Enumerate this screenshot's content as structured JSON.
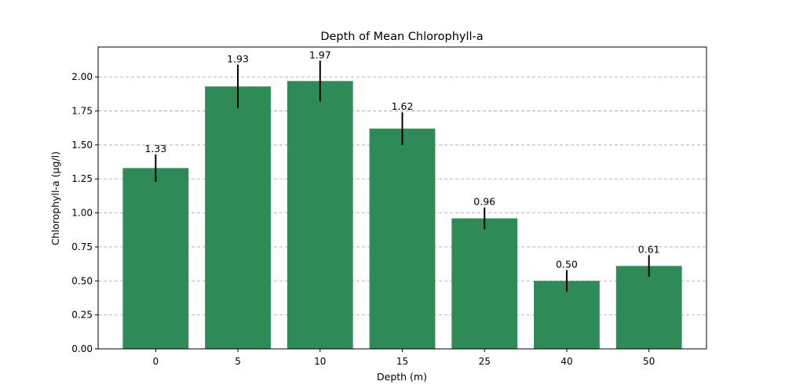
{
  "chart_data": {
    "type": "bar",
    "title": "Depth of Mean Chlorophyll-a",
    "xlabel": "Depth (m)",
    "ylabel": "Chlorophyll-a (µg/l)",
    "categories": [
      "0",
      "5",
      "10",
      "15",
      "25",
      "40",
      "50"
    ],
    "values": [
      1.33,
      1.93,
      1.97,
      1.62,
      0.96,
      0.5,
      0.61
    ],
    "value_labels": [
      "1.33",
      "1.93",
      "1.97",
      "1.62",
      "0.96",
      "0.50",
      "0.61"
    ],
    "errors": [
      0.1,
      0.16,
      0.15,
      0.12,
      0.08,
      0.08,
      0.08
    ],
    "ylim": [
      0,
      2.22
    ],
    "yticks": [
      0.0,
      0.25,
      0.5,
      0.75,
      1.0,
      1.25,
      1.5,
      1.75,
      2.0
    ],
    "ytick_labels": [
      "0.00",
      "0.25",
      "0.50",
      "0.75",
      "1.00",
      "1.25",
      "1.50",
      "1.75",
      "2.00"
    ],
    "grid": "y-dashed",
    "bar_color": "#2e8b57"
  }
}
